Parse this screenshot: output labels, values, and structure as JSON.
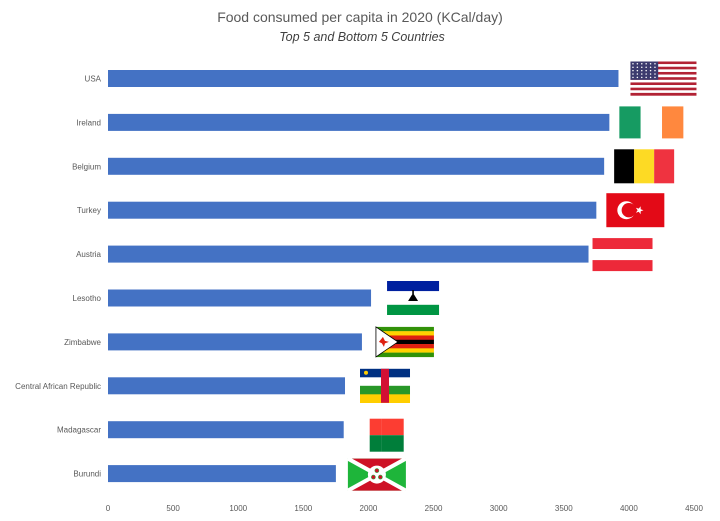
{
  "chart_data": {
    "type": "bar",
    "orientation": "horizontal",
    "title": "Food consumed per capita in 2020 (KCal/day)",
    "subtitle": "Top 5 and Bottom 5 Countries",
    "xlabel": "",
    "ylabel": "",
    "xlim": [
      0,
      4500
    ],
    "xticks": [
      0,
      500,
      1000,
      1500,
      2000,
      2500,
      3000,
      3500,
      4000,
      4500
    ],
    "grid": false,
    "legend": "none",
    "bar_color": "#4472C4",
    "categories": [
      "USA",
      "Ireland",
      "Belgium",
      "Turkey",
      "Austria",
      "Lesotho",
      "Zimbabwe",
      "Central African Republic",
      "Madagascar",
      "Burundi"
    ],
    "values": [
      3920,
      3850,
      3810,
      3750,
      3690,
      2020,
      1950,
      1820,
      1810,
      1750
    ],
    "flags": [
      "usa-flag",
      "ireland-flag",
      "belgium-flag",
      "turkey-flag",
      "austria-flag",
      "lesotho-flag",
      "zimbabwe-flag",
      "central-african-republic-flag",
      "madagascar-flag",
      "burundi-flag"
    ]
  }
}
